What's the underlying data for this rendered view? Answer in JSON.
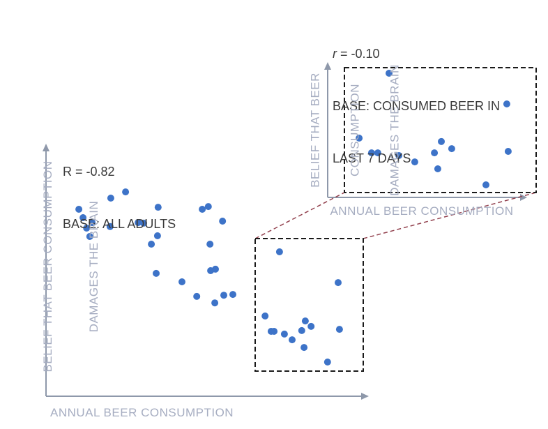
{
  "colors": {
    "point_blue": "#3d73c8",
    "axis_line": "#8e98aa",
    "axis_label_text": "#a6adc1",
    "annotation_text": "#3a3a3a",
    "zoom_box_stroke": "#1a1a1a",
    "connector_red": "#93424f",
    "background": "#ffffff"
  },
  "chart_data": [
    {
      "id": "main",
      "type": "scatter",
      "annotation": {
        "r_text": "R = -0.82",
        "base_text": "BASE: ALL ADULTS"
      },
      "correlation_r": -0.82,
      "xlabel": "ANNUAL BEER CONSUMPTION",
      "ylabel": "BELIEF THAT BEER CONSUMPTION DAMAGES THE BRAIN",
      "ylabel_lines": [
        "BELIEF THAT BEER CONSUMPTION",
        "DAMAGES THE BRAIN"
      ],
      "axis_note": "axes have no ticks or numeric labels; point coordinates normalized 0-100",
      "xlim": [
        0,
        100
      ],
      "ylim": [
        0,
        100
      ],
      "points": [
        [
          10.2,
          75.5
        ],
        [
          11.5,
          72.1
        ],
        [
          14.3,
          70.1
        ],
        [
          12.6,
          67.9
        ],
        [
          13.6,
          64.5
        ],
        [
          20.1,
          80.0
        ],
        [
          24.7,
          82.5
        ],
        [
          19.9,
          68.5
        ],
        [
          28.6,
          70.1
        ],
        [
          30.3,
          69.9
        ],
        [
          34.8,
          76.3
        ],
        [
          34.6,
          64.8
        ],
        [
          32.7,
          61.4
        ],
        [
          34.2,
          49.6
        ],
        [
          42.2,
          46.2
        ],
        [
          48.5,
          75.5
        ],
        [
          50.4,
          76.6
        ],
        [
          54.8,
          70.7
        ],
        [
          50.9,
          61.4
        ],
        [
          51.1,
          50.7
        ],
        [
          52.6,
          51.3
        ],
        [
          46.8,
          40.3
        ],
        [
          52.4,
          37.7
        ],
        [
          55.2,
          40.8
        ],
        [
          58.0,
          41.1
        ],
        [
          72.5,
          58.3
        ],
        [
          90.7,
          45.9
        ],
        [
          68.0,
          32.4
        ],
        [
          69.9,
          26.2
        ],
        [
          70.8,
          26.2
        ],
        [
          74.0,
          25.1
        ],
        [
          76.4,
          22.8
        ],
        [
          79.4,
          26.5
        ],
        [
          80.5,
          30.4
        ],
        [
          82.3,
          28.2
        ],
        [
          80.1,
          19.7
        ],
        [
          91.1,
          27.0
        ],
        [
          87.4,
          13.8
        ]
      ],
      "zoom_region": {
        "x": [
          64.9,
          98.5
        ],
        "y": [
          10.1,
          63.7
        ]
      }
    },
    {
      "id": "inset",
      "type": "scatter",
      "annotation": {
        "r_symbol": "r",
        "r_rest": " = -0.10",
        "base_line1": "BASE: CONSUMED BEER IN",
        "base_line2": "LAST 7 DAYS"
      },
      "correlation_r": -0.1,
      "xlabel": "ANNUAL BEER CONSUMPTION",
      "ylabel": "BELIEF THAT BEER CONSUMPTION DAMAGES THE BRAIN",
      "ylabel_lines": [
        "BELIEF THAT BEER",
        "CONSUMPTION",
        "DAMAGES THE BRAIN"
      ],
      "axis_note": "zoomed view of main chart dashed region; axes unlabeled; normalized 0-100",
      "xlim": [
        0,
        100
      ],
      "ylim": [
        0,
        100
      ],
      "points": [
        [
          31.2,
          94.7
        ],
        [
          91.1,
          71.3
        ],
        [
          16.0,
          45.2
        ],
        [
          22.3,
          34.0
        ],
        [
          25.5,
          34.0
        ],
        [
          36.2,
          31.9
        ],
        [
          44.3,
          27.1
        ],
        [
          54.3,
          34.0
        ],
        [
          57.8,
          42.6
        ],
        [
          63.1,
          37.2
        ],
        [
          56.0,
          21.8
        ],
        [
          91.8,
          35.1
        ],
        [
          80.5,
          9.6
        ]
      ]
    }
  ]
}
